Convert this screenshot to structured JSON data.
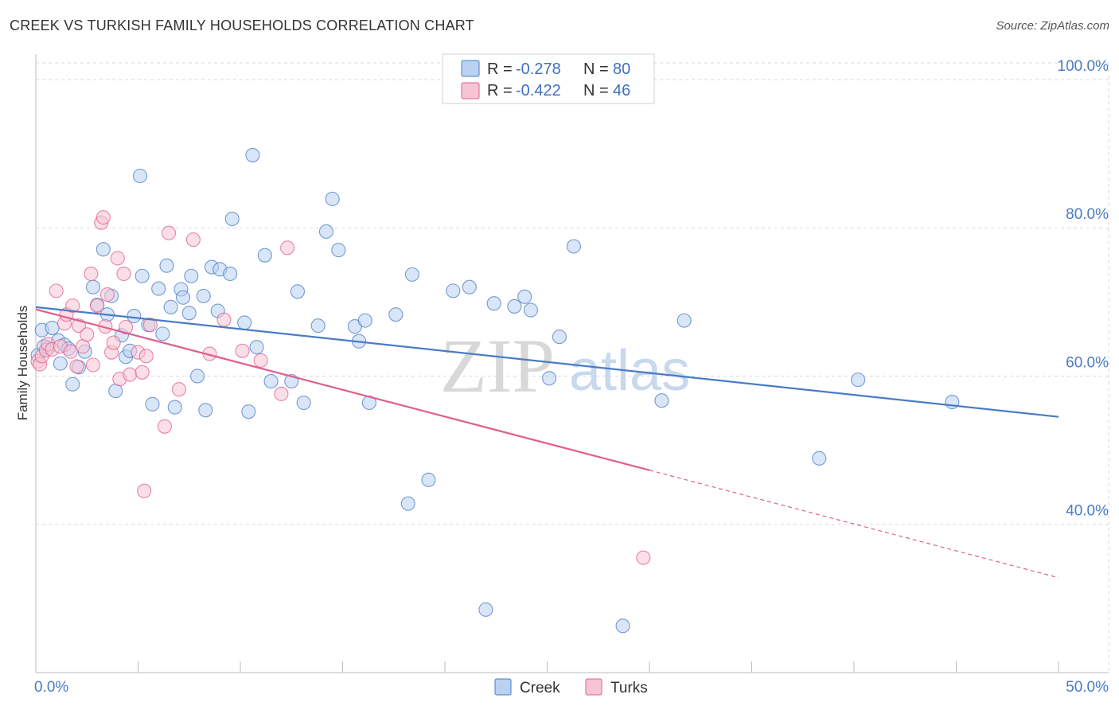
{
  "title": "CREEK VS TURKISH FAMILY HOUSEHOLDS CORRELATION CHART",
  "source": "Source: ZipAtlas.com",
  "watermark": {
    "zip": "ZIP",
    "atlas": "atlas"
  },
  "colors": {
    "creek": "#4a7cc4",
    "creek_fill": "#b9d2f2",
    "turks": "#e05f8e",
    "turks_fill": "#f7c4d4",
    "grid": "#d9d9d9",
    "tick_label": "#4a7cc4"
  },
  "legend": {
    "rows": [
      {
        "r_label": "R =",
        "r_value": "-0.278",
        "n_label": "N =",
        "n_value": "80",
        "series": "creek"
      },
      {
        "r_label": "R =",
        "r_value": "-0.422",
        "n_label": "N =",
        "n_value": "46",
        "series": "turks"
      }
    ]
  },
  "bottom_legend": [
    "Creek",
    "Turks"
  ],
  "chart_data": {
    "type": "scatter",
    "title": "CREEK VS TURKISH FAMILY HOUSEHOLDS CORRELATION CHART",
    "xlabel": "",
    "ylabel": "Family Households",
    "xlim": [
      0,
      50
    ],
    "ylim": [
      20,
      103
    ],
    "x_tick_labels": [
      "0.0%",
      "50.0%"
    ],
    "y_ticks": [
      40,
      60,
      80,
      100
    ],
    "y_tick_labels": [
      "40.0%",
      "60.0%",
      "80.0%",
      "100.0%"
    ],
    "grid": true,
    "legend_position": "top-center",
    "series": [
      {
        "name": "Creek",
        "color": "#4a7cc4",
        "trend": {
          "x0": 0,
          "y0": 69.3,
          "x1": 50,
          "y1": 54.5
        },
        "points": [
          [
            0.3,
            66.2
          ],
          [
            0.6,
            63.8
          ],
          [
            0.8,
            66.5
          ],
          [
            1.1,
            64.8
          ],
          [
            1.2,
            61.7
          ],
          [
            1.4,
            64.2
          ],
          [
            1.6,
            63.7
          ],
          [
            1.8,
            58.9
          ],
          [
            2.1,
            61.2
          ],
          [
            2.4,
            63.3
          ],
          [
            2.8,
            72.0
          ],
          [
            3.0,
            69.6
          ],
          [
            3.3,
            77.1
          ],
          [
            3.5,
            68.3
          ],
          [
            3.7,
            70.8
          ],
          [
            3.9,
            58.0
          ],
          [
            4.2,
            65.5
          ],
          [
            4.4,
            62.6
          ],
          [
            4.6,
            63.4
          ],
          [
            4.8,
            68.1
          ],
          [
            5.1,
            87.0
          ],
          [
            5.2,
            73.5
          ],
          [
            5.5,
            66.9
          ],
          [
            5.7,
            56.2
          ],
          [
            6.0,
            71.8
          ],
          [
            6.2,
            65.7
          ],
          [
            6.4,
            74.9
          ],
          [
            6.6,
            69.3
          ],
          [
            6.8,
            55.8
          ],
          [
            7.1,
            71.7
          ],
          [
            7.2,
            70.6
          ],
          [
            7.5,
            68.5
          ],
          [
            7.6,
            73.5
          ],
          [
            7.9,
            60.0
          ],
          [
            8.2,
            70.8
          ],
          [
            8.3,
            55.4
          ],
          [
            8.6,
            74.7
          ],
          [
            8.9,
            68.8
          ],
          [
            9.0,
            74.4
          ],
          [
            9.5,
            73.8
          ],
          [
            9.6,
            81.2
          ],
          [
            10.2,
            67.2
          ],
          [
            10.4,
            55.2
          ],
          [
            10.6,
            89.8
          ],
          [
            10.8,
            63.9
          ],
          [
            11.2,
            76.3
          ],
          [
            11.5,
            59.3
          ],
          [
            12.5,
            59.3
          ],
          [
            12.8,
            71.4
          ],
          [
            13.1,
            56.4
          ],
          [
            13.8,
            66.8
          ],
          [
            14.2,
            79.5
          ],
          [
            14.5,
            83.9
          ],
          [
            14.8,
            77.0
          ],
          [
            15.6,
            66.7
          ],
          [
            15.8,
            64.7
          ],
          [
            16.1,
            67.5
          ],
          [
            16.3,
            56.4
          ],
          [
            17.6,
            68.3
          ],
          [
            18.2,
            42.8
          ],
          [
            18.4,
            73.7
          ],
          [
            19.2,
            46.0
          ],
          [
            20.4,
            71.5
          ],
          [
            21.2,
            72.0
          ],
          [
            22.0,
            28.5
          ],
          [
            22.4,
            69.8
          ],
          [
            23.4,
            69.4
          ],
          [
            23.9,
            70.7
          ],
          [
            24.2,
            68.9
          ],
          [
            25.1,
            59.7
          ],
          [
            25.6,
            65.3
          ],
          [
            26.3,
            77.5
          ],
          [
            28.7,
            26.3
          ],
          [
            30.6,
            56.7
          ],
          [
            31.7,
            67.5
          ],
          [
            38.3,
            48.9
          ],
          [
            40.2,
            59.5
          ],
          [
            44.8,
            56.5
          ],
          [
            0.1,
            62.8
          ],
          [
            0.4,
            64.0
          ]
        ]
      },
      {
        "name": "Turks",
        "color": "#e05f8e",
        "trend": {
          "x0": 0,
          "y0": 69.0,
          "x1": 30,
          "y1": 47.3,
          "dash_x1": 50,
          "dash_y1": 32.8
        },
        "points": [
          [
            0.1,
            62.0
          ],
          [
            0.2,
            61.6
          ],
          [
            0.3,
            62.7
          ],
          [
            0.5,
            63.5
          ],
          [
            0.6,
            64.3
          ],
          [
            0.8,
            63.6
          ],
          [
            1.0,
            71.5
          ],
          [
            1.2,
            64.0
          ],
          [
            1.4,
            67.1
          ],
          [
            1.5,
            68.3
          ],
          [
            1.7,
            63.3
          ],
          [
            1.8,
            69.5
          ],
          [
            2.0,
            61.3
          ],
          [
            2.1,
            66.8
          ],
          [
            2.3,
            64.0
          ],
          [
            2.5,
            65.6
          ],
          [
            2.7,
            73.8
          ],
          [
            2.8,
            61.5
          ],
          [
            3.0,
            69.5
          ],
          [
            3.2,
            80.7
          ],
          [
            3.3,
            81.4
          ],
          [
            3.4,
            66.7
          ],
          [
            3.5,
            71.0
          ],
          [
            3.7,
            63.2
          ],
          [
            3.8,
            64.5
          ],
          [
            4.0,
            75.9
          ],
          [
            4.1,
            59.6
          ],
          [
            4.3,
            73.8
          ],
          [
            4.4,
            66.6
          ],
          [
            4.6,
            60.2
          ],
          [
            5.0,
            63.2
          ],
          [
            5.2,
            60.5
          ],
          [
            5.3,
            44.5
          ],
          [
            5.4,
            62.7
          ],
          [
            5.6,
            66.9
          ],
          [
            6.3,
            53.2
          ],
          [
            6.5,
            79.3
          ],
          [
            7.0,
            58.2
          ],
          [
            7.7,
            78.4
          ],
          [
            8.5,
            63.0
          ],
          [
            9.2,
            67.6
          ],
          [
            10.1,
            63.4
          ],
          [
            11.0,
            62.1
          ],
          [
            12.0,
            57.6
          ],
          [
            12.3,
            77.3
          ],
          [
            29.7,
            35.5
          ]
        ]
      }
    ]
  }
}
